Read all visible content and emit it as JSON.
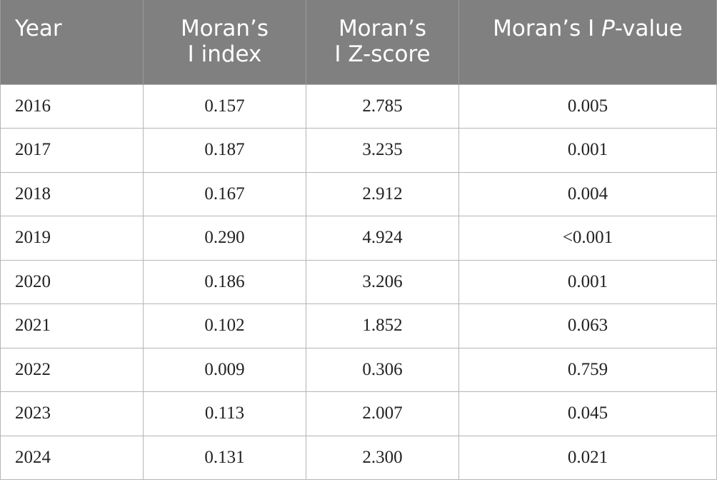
{
  "table": {
    "headers": {
      "year": [
        "Year"
      ],
      "index": [
        "Moran’s",
        "I index"
      ],
      "zscore": [
        "Moran’s",
        "I Z-score"
      ],
      "pvalue": {
        "prefix": "Moran’s I ",
        "italic": "P",
        "suffix": "-value"
      }
    },
    "rows": [
      {
        "year": "2016",
        "index": "0.157",
        "z": "2.785",
        "p": "0.005"
      },
      {
        "year": "2017",
        "index": "0.187",
        "z": "3.235",
        "p": "0.001"
      },
      {
        "year": "2018",
        "index": "0.167",
        "z": "2.912",
        "p": "0.004"
      },
      {
        "year": "2019",
        "index": "0.290",
        "z": "4.924",
        "p": "<0.001"
      },
      {
        "year": "2020",
        "index": "0.186",
        "z": "3.206",
        "p": "0.001"
      },
      {
        "year": "2021",
        "index": "0.102",
        "z": "1.852",
        "p": "0.063"
      },
      {
        "year": "2022",
        "index": "0.009",
        "z": "0.306",
        "p": "0.759"
      },
      {
        "year": "2023",
        "index": "0.113",
        "z": "2.007",
        "p": "0.045"
      },
      {
        "year": "2024",
        "index": "0.131",
        "z": "2.300",
        "p": "0.021"
      }
    ]
  }
}
